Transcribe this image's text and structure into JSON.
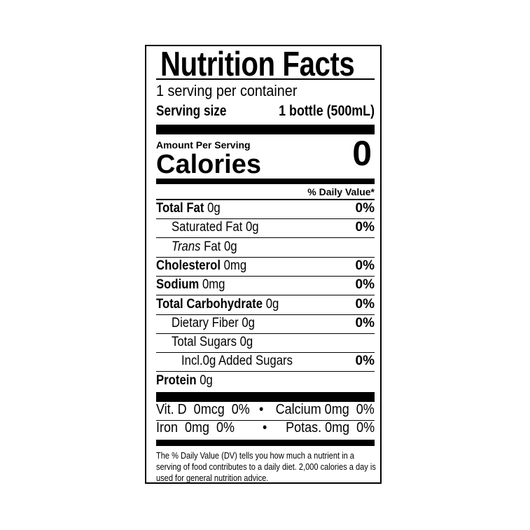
{
  "title": "Nutrition Facts",
  "servings_per_container": "1 serving per container",
  "serving_size_label": "Serving size",
  "serving_size_value": "1 bottle (500mL)",
  "amount_per_serving": "Amount Per Serving",
  "calories_label": "Calories",
  "calories_value": "0",
  "daily_value_header": "% Daily Value*",
  "nutrients": [
    {
      "name": "Total Fat",
      "amount": "0g",
      "dv": "0%"
    },
    {
      "name": "Saturated Fat",
      "amount": "0g",
      "dv": "0%"
    },
    {
      "name": "Trans",
      "name_suffix": "Fat",
      "amount": "0g",
      "dv": ""
    },
    {
      "name": "Cholesterol",
      "amount": "0mg",
      "dv": "0%"
    },
    {
      "name": "Sodium",
      "amount": "0mg",
      "dv": "0%"
    },
    {
      "name": "Total Carbohydrate",
      "amount": "0g",
      "dv": "0%"
    },
    {
      "name": "Dietary Fiber",
      "amount": "0g",
      "dv": "0%"
    },
    {
      "name": "Total Sugars",
      "amount": "0g",
      "dv": ""
    },
    {
      "name": "Incl.0g Added Sugars",
      "amount": "",
      "dv": "0%"
    },
    {
      "name": "Protein",
      "amount": "0g",
      "dv": ""
    }
  ],
  "vitamins": [
    {
      "left": "Vit. D  0mcg  0%",
      "bullet": "•",
      "right": "Calcium 0mg  0%"
    },
    {
      "left": "Iron  0mg  0%",
      "bullet": "•",
      "right": "Potas. 0mg  0%"
    }
  ],
  "footnote": "The % Daily Value (DV) tells you how much a nutrient in a serving of food contributes to a daily diet. 2,000 calories a day is used for general nutrition advice."
}
